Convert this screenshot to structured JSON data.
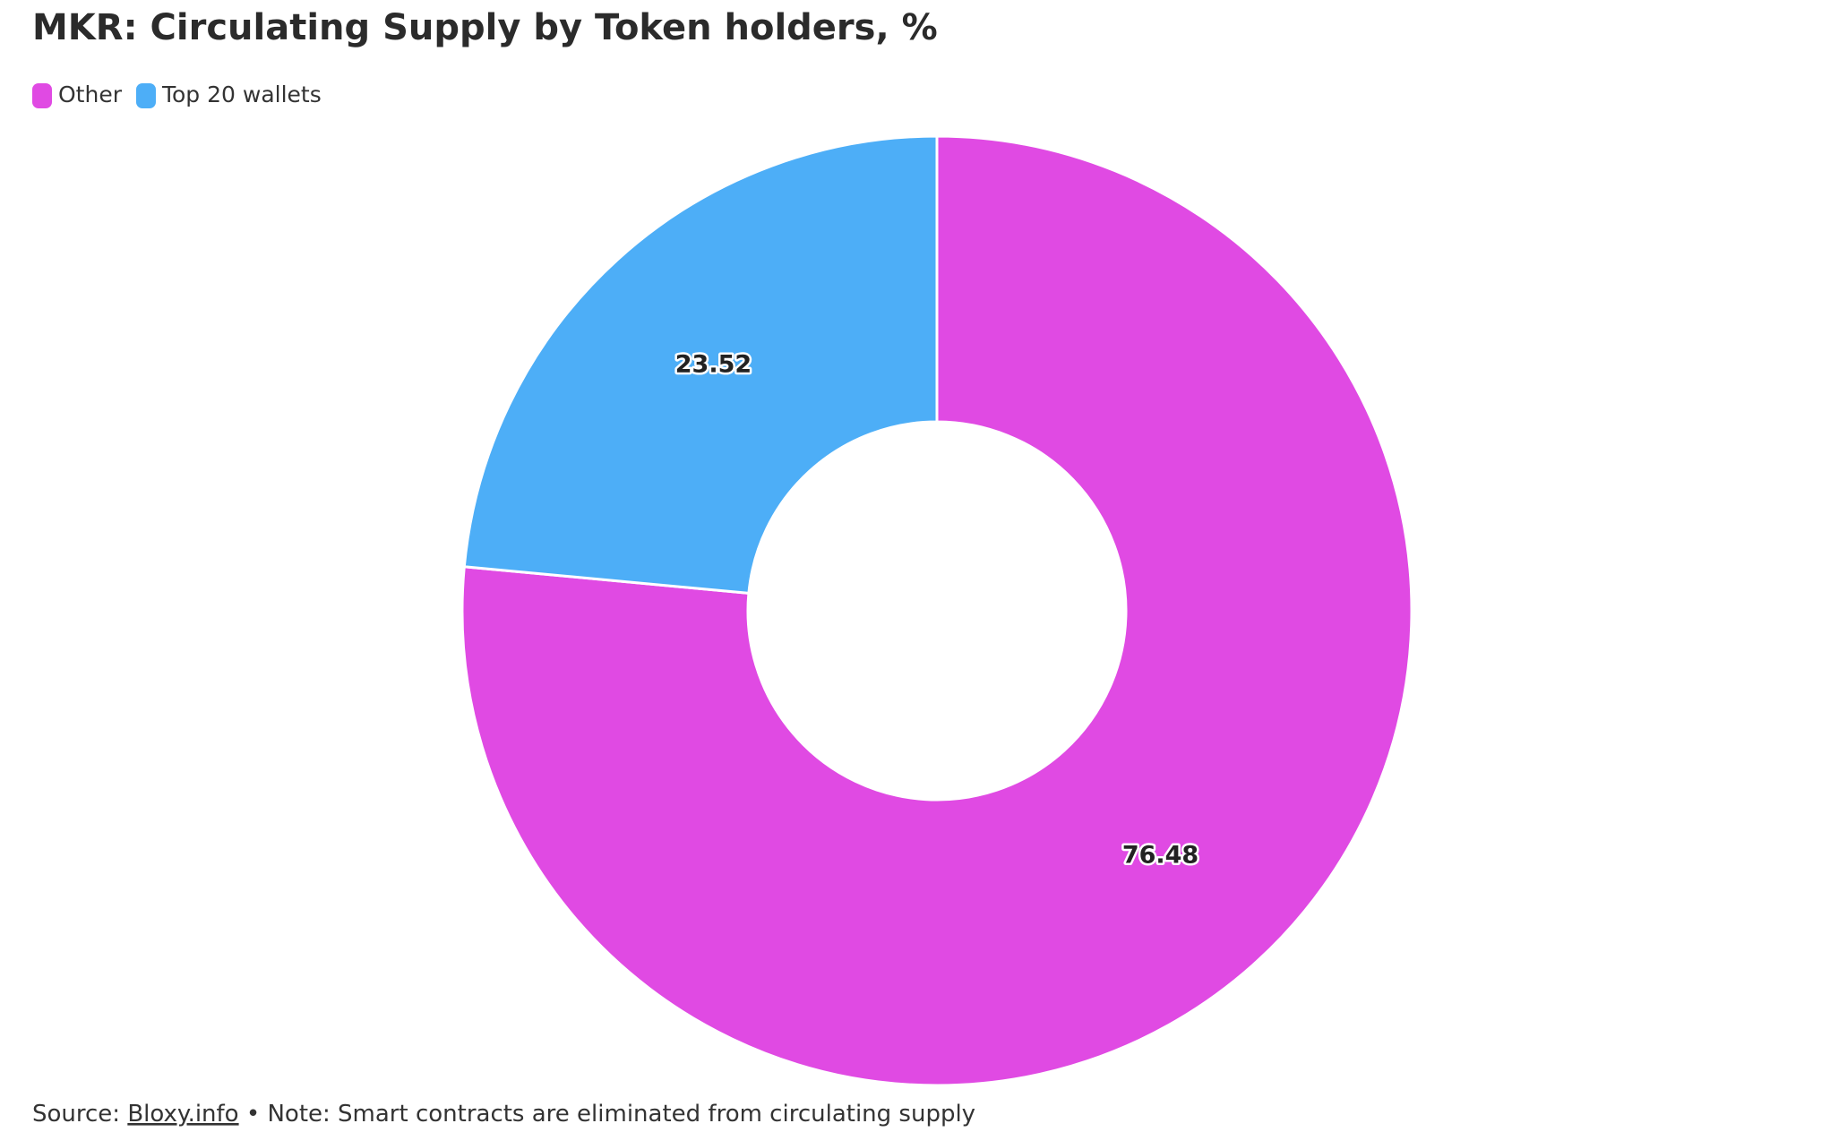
{
  "chart_data": {
    "type": "donut",
    "title": "MKR: Circulating Supply by Token holders, %",
    "categories": [
      "Other",
      "Top 20 wallets"
    ],
    "values": [
      76.48,
      23.52
    ],
    "colors": [
      "#e04ae3",
      "#4daef7"
    ],
    "source_label": "Source:",
    "source_link": "Bloxy.info",
    "note": "• Note: Smart contracts are eliminated from circulating supply"
  }
}
